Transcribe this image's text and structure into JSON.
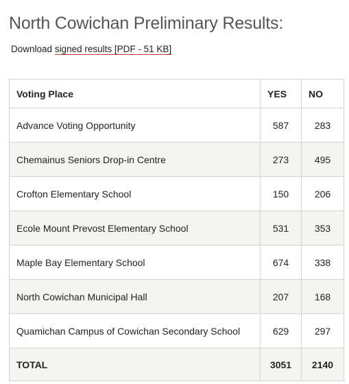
{
  "header": {
    "title": "North Cowichan Preliminary Results:"
  },
  "download": {
    "prefix": "Download",
    "link": "signed results [PDF - 51 KB]"
  },
  "table": {
    "columns": [
      "Voting Place",
      "YES",
      "NO"
    ],
    "rows": [
      [
        "Advance Voting Opportunity",
        587,
        283
      ],
      [
        "Chemainus Seniors Drop-in Centre",
        273,
        495
      ],
      [
        "Crofton Elementary School",
        150,
        206
      ],
      [
        "Ecole Mount Prevost Elementary School",
        531,
        353
      ],
      [
        "Maple Bay Elementary School",
        674,
        338
      ],
      [
        "North Cowichan Municipal Hall",
        207,
        168
      ],
      [
        "Quamichan Campus of Cowichan Secondary School",
        629,
        297
      ]
    ],
    "total": [
      "TOTAL",
      3051,
      2140
    ]
  }
}
